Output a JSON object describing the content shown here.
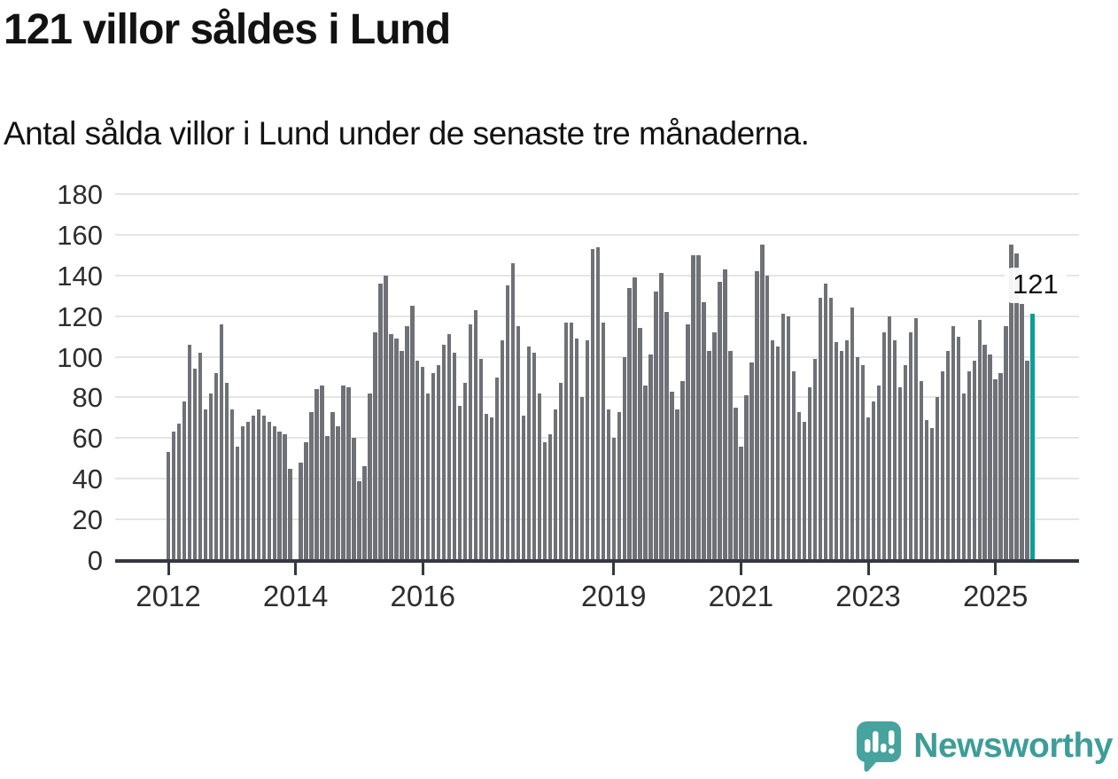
{
  "header": {
    "title": "121 villor såldes i Lund",
    "subtitle": "Antal sålda villor i Lund under de senaste tre månaderna."
  },
  "annotation": {
    "label": "121"
  },
  "logo": {
    "text": "Newsworthy",
    "icon": "newsworthy-speech-bubble-chart-icon"
  },
  "colors": {
    "bar": "#6f7177",
    "highlight": "#0c9e97",
    "gridline": "#e5e5e5",
    "axis": "#35393f",
    "tick_label": "#2d2d2d",
    "text": "#121212",
    "logo_teal": "#47a39e"
  },
  "chart_data": {
    "type": "bar",
    "title": "121 villor såldes i Lund",
    "subtitle": "Antal sålda villor i Lund under de senaste tre månaderna.",
    "xlabel": "",
    "ylabel": "",
    "start": "2012-01",
    "end": "2025-08",
    "frequency": "monthly",
    "missing_months": [
      "2014-01"
    ],
    "ylim": [
      0,
      180
    ],
    "y_ticks": [
      0,
      20,
      40,
      60,
      80,
      100,
      120,
      140,
      160,
      180
    ],
    "x_ticks": [
      {
        "label": "2012",
        "month_index": 0
      },
      {
        "label": "2014",
        "month_index": 24
      },
      {
        "label": "2016",
        "month_index": 48
      },
      {
        "label": "2019",
        "month_index": 84
      },
      {
        "label": "2021",
        "month_index": 108
      },
      {
        "label": "2023",
        "month_index": 132
      },
      {
        "label": "2025",
        "month_index": 156
      }
    ],
    "highlight": {
      "month": "2025-08",
      "value": 121,
      "label": "121"
    },
    "values": [
      53,
      63,
      67,
      78,
      106,
      94,
      102,
      74,
      82,
      92,
      116,
      87,
      74,
      56,
      66,
      68,
      71,
      74,
      71,
      68,
      66,
      63,
      62,
      45,
      null,
      48,
      58,
      73,
      84,
      86,
      61,
      73,
      66,
      86,
      85,
      60,
      39,
      46,
      82,
      112,
      136,
      140,
      111,
      109,
      103,
      115,
      125,
      98,
      95,
      82,
      92,
      96,
      106,
      111,
      102,
      76,
      87,
      116,
      123,
      99,
      72,
      70,
      90,
      108,
      135,
      146,
      115,
      71,
      105,
      102,
      82,
      58,
      62,
      74,
      87,
      117,
      117,
      109,
      80,
      108,
      153,
      154,
      117,
      74,
      60,
      73,
      100,
      134,
      139,
      114,
      86,
      101,
      132,
      141,
      122,
      83,
      74,
      88,
      116,
      150,
      150,
      127,
      103,
      112,
      137,
      143,
      103,
      75,
      56,
      81,
      97,
      142,
      155,
      140,
      108,
      105,
      121,
      120,
      93,
      73,
      68,
      85,
      99,
      129,
      136,
      129,
      107,
      103,
      108,
      124,
      100,
      96,
      70,
      78,
      86,
      112,
      120,
      108,
      85,
      96,
      112,
      119,
      88,
      69,
      65,
      80,
      93,
      103,
      115,
      110,
      82,
      93,
      98,
      118,
      106,
      101,
      89,
      92,
      115,
      155,
      151,
      126,
      98,
      121
    ]
  }
}
